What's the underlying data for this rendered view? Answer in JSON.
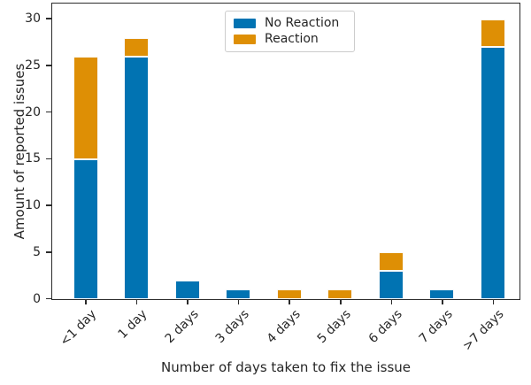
{
  "chart_data": {
    "type": "bar",
    "stacked": true,
    "title": "",
    "xlabel": "Number of days taken to fix the issue",
    "ylabel": "Amount of reported issues",
    "categories": [
      "<1 day",
      "1 day",
      "2 days",
      "3 days",
      "4 days",
      "5 days",
      "6 days",
      "7 days",
      ">7 days"
    ],
    "series": [
      {
        "name": "No Reaction",
        "color": "#0173b2",
        "values": [
          15,
          26,
          2,
          1,
          0,
          0,
          3,
          1,
          27
        ]
      },
      {
        "name": "Reaction",
        "color": "#de8f05",
        "values": [
          11,
          2,
          0,
          0,
          1,
          1,
          2,
          0,
          3
        ]
      }
    ],
    "totals": [
      26,
      28,
      2,
      1,
      1,
      1,
      5,
      1,
      30
    ],
    "yticks": [
      0,
      5,
      10,
      15,
      20,
      25,
      30
    ],
    "ylim": [
      0,
      31.6
    ],
    "xtick_rotation_deg": 45,
    "grid": false,
    "legend": {
      "position": "upper center",
      "items": [
        "No Reaction",
        "Reaction"
      ]
    },
    "style": {
      "spine_color": "#2b2b2b",
      "text_color": "#262626",
      "bar_edge_color": "#fafafa",
      "background": "#ffffff"
    }
  }
}
